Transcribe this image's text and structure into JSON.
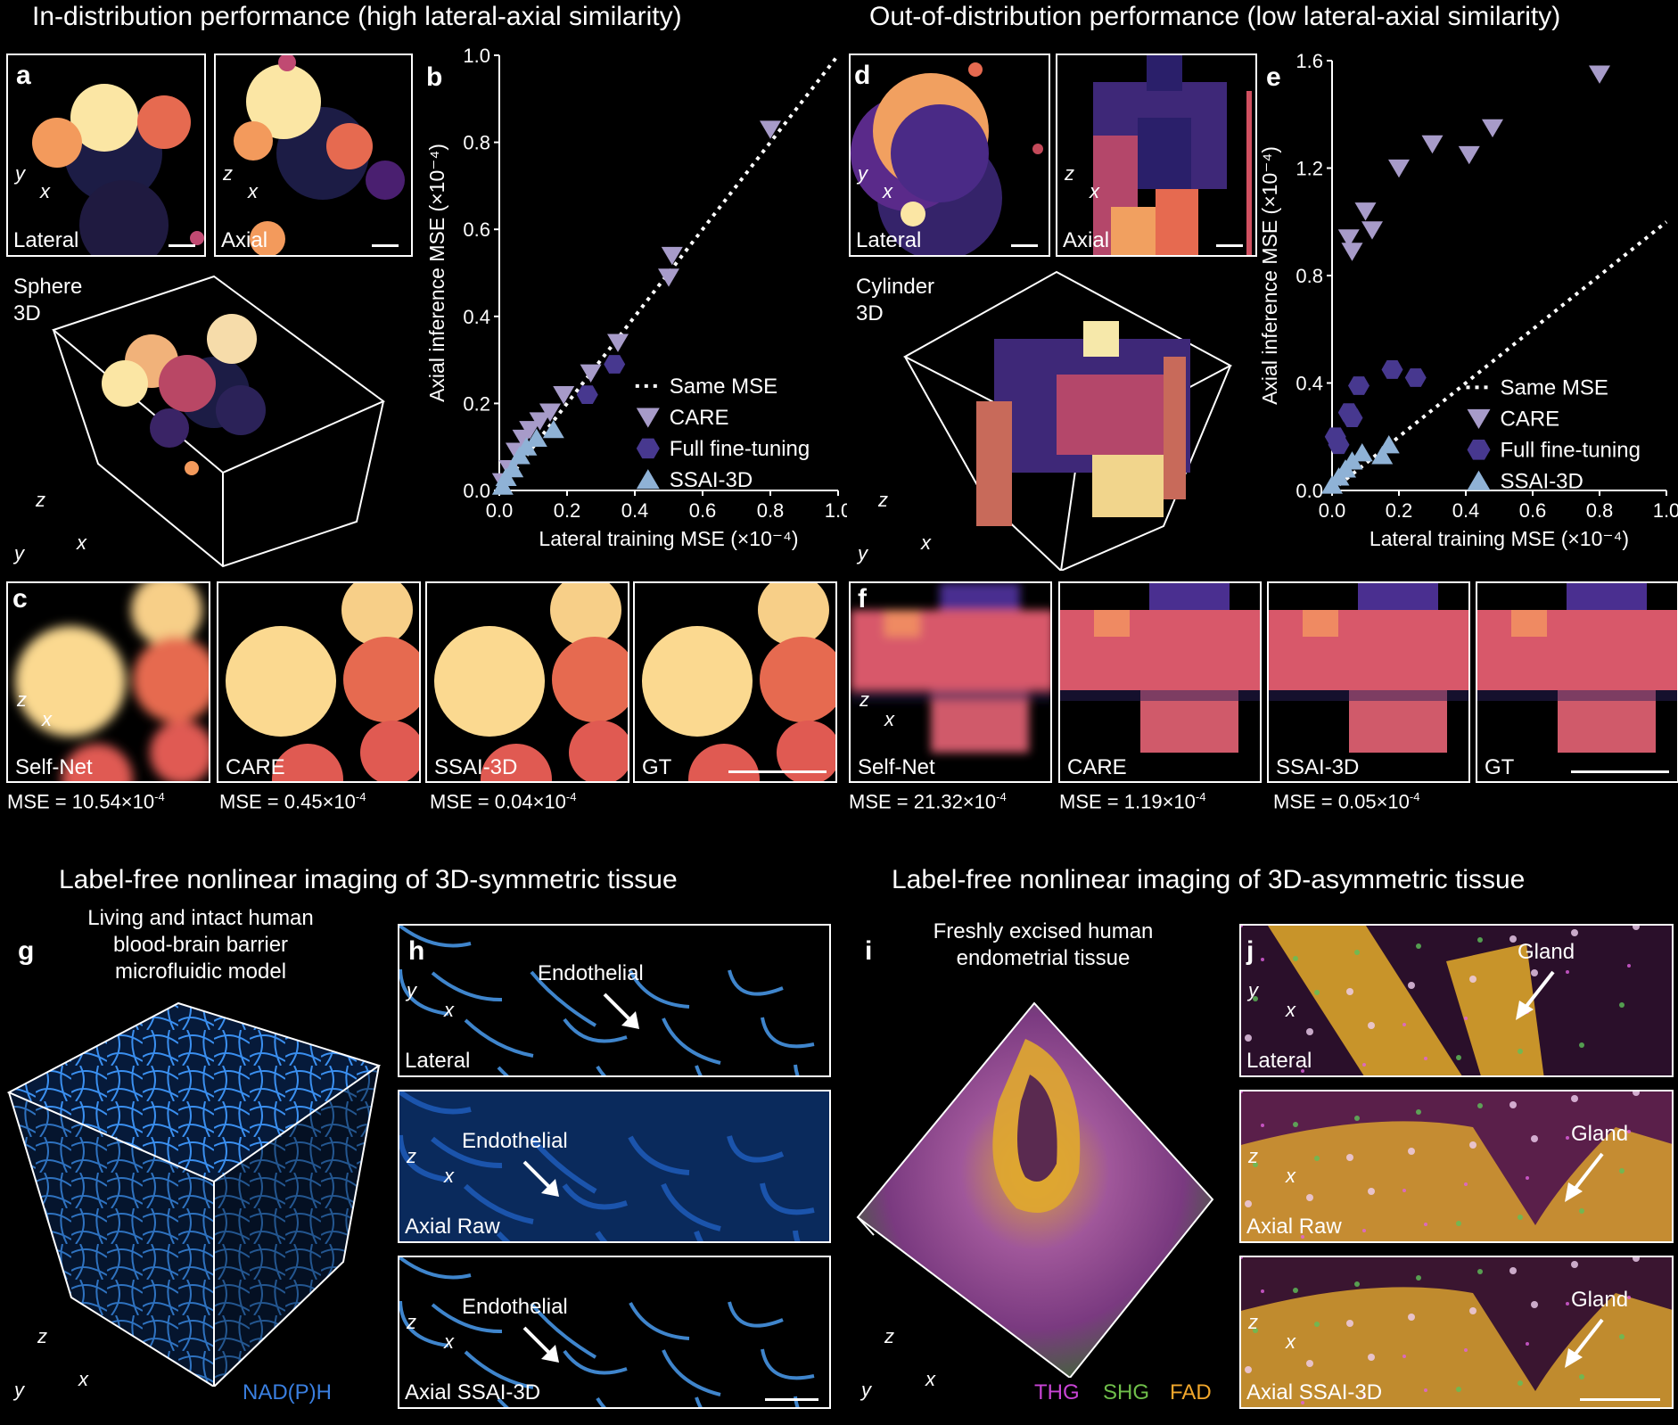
{
  "top": {
    "left_title": "In-distribution performance (high lateral-axial similarity)",
    "right_title": "Out-of-distribution performance (low lateral-axial similarity)"
  },
  "bottom": {
    "left_title": "Label-free nonlinear imaging of 3D-symmetric tissue",
    "right_title": "Label-free nonlinear imaging of 3D-asymmetric tissue"
  },
  "panels": {
    "a": "a",
    "b": "b",
    "c": "c",
    "d": "d",
    "e": "e",
    "f": "f",
    "g": "g",
    "h": "h",
    "i": "i",
    "j": "j"
  },
  "labels": {
    "lateral": "Lateral",
    "axial": "Axial",
    "sphere": "Sphere",
    "cylinder": "Cylinder",
    "three_d": "3D",
    "self_net": "Self-Net",
    "care": "CARE",
    "ssai": "SSAI-3D",
    "gt": "GT",
    "axial_raw": "Axial Raw",
    "axial_ssai": "Axial SSAI-3D",
    "endothelial": "Endothelial",
    "gland": "Gland",
    "x": "x",
    "y": "y",
    "z": "z"
  },
  "mse_left": [
    {
      "prefix": "MSE = 10.54×10",
      "exp": "-4"
    },
    {
      "prefix": "MSE = 0.45×10",
      "exp": "-4"
    },
    {
      "prefix": "MSE = 0.04×10",
      "exp": "-4"
    }
  ],
  "mse_right": [
    {
      "prefix": "MSE = 21.32×10",
      "exp": "-4"
    },
    {
      "prefix": "MSE = 1.19×10",
      "exp": "-4"
    },
    {
      "prefix": "MSE = 0.05×10",
      "exp": "-4"
    }
  ],
  "g_caption": [
    "Living and intact human",
    "blood-brain barrier",
    "microfluidic model"
  ],
  "g_channel": "NAD(P)H",
  "i_caption": [
    "Freshly excised human",
    "endometrial tissue"
  ],
  "i_channels": [
    {
      "name": "THG",
      "color": "#c944d6"
    },
    {
      "name": "SHG",
      "color": "#6fbf4a"
    },
    {
      "name": "FAD",
      "color": "#f2a72c"
    }
  ],
  "colors": {
    "care": "#a79bc9",
    "full_ft": "#47388f",
    "ssai": "#8fb2d6",
    "nadph": "#3a7fe0"
  },
  "chart_data": [
    {
      "type": "scatter",
      "panel": "b",
      "xlabel": "Lateral training MSE (×10⁻⁴)",
      "ylabel": "Axial inference MSE (×10⁻⁴)",
      "xlim": [
        0,
        1.0
      ],
      "ylim": [
        0,
        1.0
      ],
      "xticks": [
        "0.0",
        "0.2",
        "0.4",
        "0.6",
        "0.8",
        "1.0"
      ],
      "yticks": [
        "0.0",
        "0.2",
        "0.4",
        "0.6",
        "0.8",
        "1.0"
      ],
      "legend_position": "bottom-right",
      "series": [
        {
          "name": "Same MSE",
          "style": "dotted-line",
          "x": [
            0,
            1.0
          ],
          "y": [
            0,
            1.0
          ]
        },
        {
          "name": "CARE",
          "marker": "triangle-down",
          "x": [
            0.01,
            0.03,
            0.05,
            0.07,
            0.09,
            0.12,
            0.15,
            0.19,
            0.27,
            0.35,
            0.5,
            0.51,
            0.8
          ],
          "y": [
            0.02,
            0.05,
            0.09,
            0.12,
            0.14,
            0.16,
            0.18,
            0.22,
            0.27,
            0.34,
            0.49,
            0.54,
            0.83
          ]
        },
        {
          "name": "Full fine-tuning",
          "marker": "hexagon",
          "x": [
            0.26,
            0.34
          ],
          "y": [
            0.22,
            0.29
          ]
        },
        {
          "name": "SSAI-3D",
          "marker": "triangle-up",
          "x": [
            0.01,
            0.02,
            0.04,
            0.06,
            0.08,
            0.11,
            0.16
          ],
          "y": [
            0.01,
            0.03,
            0.05,
            0.08,
            0.1,
            0.12,
            0.14
          ]
        }
      ]
    },
    {
      "type": "scatter",
      "panel": "e",
      "xlabel": "Lateral training MSE (×10⁻⁴)",
      "ylabel": "Axial inference MSE (×10⁻⁴)",
      "xlim": [
        0,
        1.0
      ],
      "ylim": [
        0,
        1.6
      ],
      "xticks": [
        "0.0",
        "0.2",
        "0.4",
        "0.6",
        "0.8",
        "1.0"
      ],
      "yticks": [
        "0.0",
        "0.4",
        "0.8",
        "1.2",
        "1.6"
      ],
      "legend_position": "bottom-right",
      "series": [
        {
          "name": "Same MSE",
          "style": "dotted-line",
          "x": [
            0,
            1.0
          ],
          "y": [
            0,
            1.0
          ]
        },
        {
          "name": "CARE",
          "marker": "triangle-down",
          "x": [
            0.05,
            0.06,
            0.1,
            0.12,
            0.2,
            0.3,
            0.41,
            0.48,
            0.8
          ],
          "y": [
            0.94,
            0.89,
            1.04,
            0.97,
            1.2,
            1.29,
            1.25,
            1.35,
            1.55
          ]
        },
        {
          "name": "Full fine-tuning",
          "marker": "hexagon",
          "x": [
            0.01,
            0.02,
            0.05,
            0.06,
            0.08,
            0.18,
            0.25
          ],
          "y": [
            0.2,
            0.17,
            0.29,
            0.27,
            0.39,
            0.45,
            0.42
          ]
        },
        {
          "name": "SSAI-3D",
          "marker": "triangle-up",
          "x": [
            0.0,
            0.02,
            0.04,
            0.06,
            0.09,
            0.15,
            0.17
          ],
          "y": [
            0.02,
            0.05,
            0.08,
            0.11,
            0.14,
            0.13,
            0.17
          ]
        }
      ]
    }
  ]
}
